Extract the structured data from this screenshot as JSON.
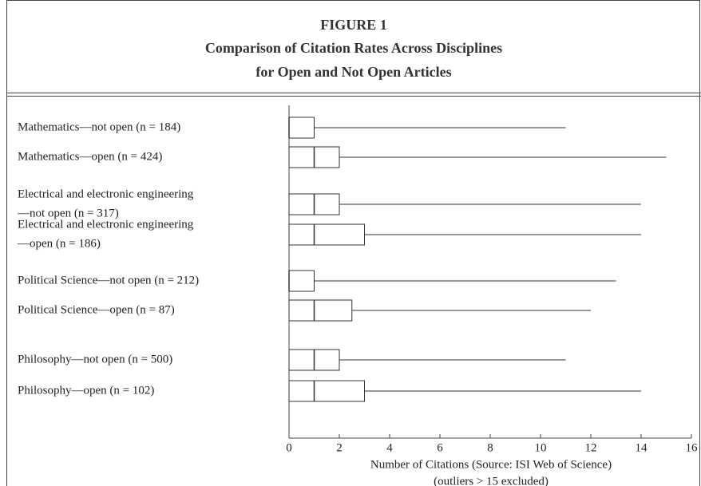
{
  "chart_data": {
    "type": "box",
    "title": [
      "FIGURE 1",
      "Comparison of Citation Rates Across Disciplines",
      "for Open and Not Open Articles"
    ],
    "categories": [
      [
        "Mathematics—not open (n = 184)"
      ],
      [
        "Mathematics—open (n = 424)"
      ],
      [
        "Electrical and electronic engineering",
        "—not open (n = 317)"
      ],
      [
        "Electrical and electronic engineering",
        "—open (n = 186)"
      ],
      [
        "Political Science—not open (n = 212)"
      ],
      [
        "Political Science—open (n = 87)"
      ],
      [
        "Philosophy—not open (n = 500)"
      ],
      [
        "Philosophy—open (n = 102)"
      ]
    ],
    "min": [
      0,
      0,
      0,
      0,
      0,
      0,
      0,
      0
    ],
    "q1": [
      0,
      0,
      0,
      0,
      0,
      0,
      0,
      0
    ],
    "median": [
      0,
      1,
      1,
      1,
      0,
      1,
      1,
      1
    ],
    "q3": [
      1,
      2,
      2,
      3,
      1,
      2.5,
      2,
      3
    ],
    "max": [
      11,
      15,
      14,
      14,
      13,
      12,
      11,
      14
    ],
    "xlim": [
      0,
      16
    ],
    "xticks": [
      0,
      2,
      4,
      6,
      8,
      10,
      12,
      14,
      16
    ],
    "xlabel": [
      "Number of Citations (Source: ISI Web of Science)",
      "(outliers > 15 excluded)"
    ],
    "color": "#333333"
  }
}
